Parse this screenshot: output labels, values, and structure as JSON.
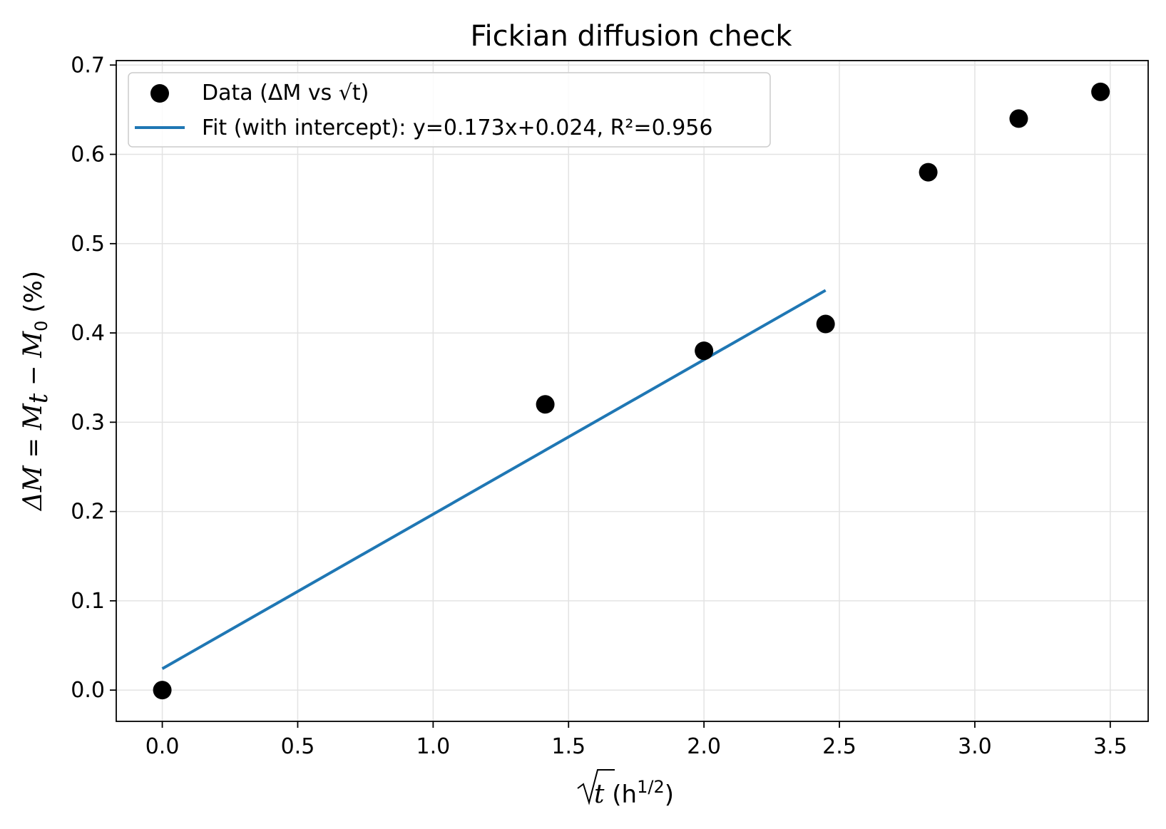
{
  "chart_data": {
    "type": "scatter",
    "title": "Fickian diffusion check",
    "xlabel": {
      "sqrt_symbol": "√",
      "var": "t",
      "unit_open": " (h",
      "unit_sup": "1/2",
      "unit_close": ")"
    },
    "ylabel": {
      "lhs": "ΔM",
      "eq": " = ",
      "m1": "M",
      "m1_sub": "t",
      "minus": " − ",
      "m2": "M",
      "m2_sub": "0",
      "unit": " (%)"
    },
    "xlim": [
      -0.17,
      3.64
    ],
    "ylim": [
      -0.035,
      0.705
    ],
    "xticks": [
      0.0,
      0.5,
      1.0,
      1.5,
      2.0,
      2.5,
      3.0,
      3.5
    ],
    "xtick_labels": [
      "0.0",
      "0.5",
      "1.0",
      "1.5",
      "2.0",
      "2.5",
      "3.0",
      "3.5"
    ],
    "yticks": [
      0.0,
      0.1,
      0.2,
      0.3,
      0.4,
      0.5,
      0.6,
      0.7
    ],
    "ytick_labels": [
      "0.0",
      "0.1",
      "0.2",
      "0.3",
      "0.4",
      "0.5",
      "0.6",
      "0.7"
    ],
    "grid": true,
    "legend_position": "top-left",
    "series": [
      {
        "name": "Data (ΔM vs √t)",
        "kind": "scatter",
        "color": "#000000",
        "x": [
          0.0,
          1.414,
          2.0,
          2.449,
          2.828,
          3.162,
          3.464
        ],
        "y": [
          0.0,
          0.32,
          0.38,
          0.41,
          0.58,
          0.64,
          0.67
        ]
      },
      {
        "name": "Fit (with intercept): y=0.173x+0.024, R²=0.956",
        "kind": "line",
        "color": "#1f77b4",
        "x": [
          0.0,
          2.449
        ],
        "y": [
          0.024,
          0.4477
        ]
      }
    ]
  }
}
